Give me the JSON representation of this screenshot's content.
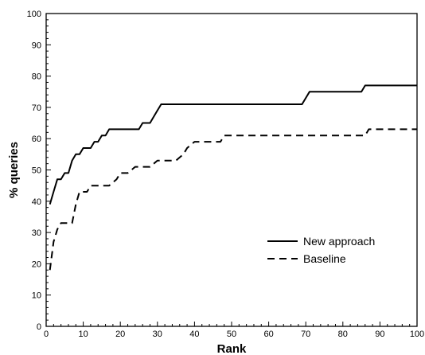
{
  "chart_data": {
    "type": "line",
    "xlabel": "Rank",
    "ylabel": "% queries",
    "xlim": [
      0,
      100
    ],
    "ylim": [
      0,
      100
    ],
    "xticks": [
      0,
      10,
      20,
      30,
      40,
      50,
      60,
      70,
      80,
      90,
      100
    ],
    "yticks": [
      0,
      10,
      20,
      30,
      40,
      50,
      60,
      70,
      80,
      90,
      100
    ],
    "grid": false,
    "legend_position": "lower-right",
    "series": [
      {
        "name": "New approach",
        "style": "solid",
        "color": "#000000",
        "x": [
          1,
          2,
          3,
          4,
          5,
          6,
          7,
          8,
          9,
          10,
          11,
          12,
          13,
          14,
          15,
          16,
          17,
          18,
          20,
          22,
          24,
          25,
          26,
          27,
          28,
          30,
          31,
          32,
          40,
          50,
          60,
          69,
          70,
          71,
          75,
          80,
          85,
          86,
          88,
          90,
          95,
          100
        ],
        "y": [
          39,
          43,
          47,
          47,
          49,
          49,
          53,
          55,
          55,
          57,
          57,
          57,
          59,
          59,
          61,
          61,
          63,
          63,
          63,
          63,
          63,
          63,
          65,
          65,
          65,
          69,
          71,
          71,
          71,
          71,
          71,
          71,
          73,
          75,
          75,
          75,
          75,
          77,
          77,
          77,
          77,
          77
        ]
      },
      {
        "name": "Baseline",
        "style": "dashed",
        "color": "#000000",
        "x": [
          1,
          2,
          3,
          4,
          5,
          6,
          7,
          8,
          9,
          10,
          11,
          12,
          14,
          16,
          17,
          19,
          20,
          22,
          24,
          25,
          26,
          28,
          30,
          31,
          32,
          35,
          37,
          38,
          40,
          45,
          47,
          48,
          50,
          60,
          70,
          80,
          86,
          87,
          90,
          95,
          100
        ],
        "y": [
          18,
          27,
          31,
          33,
          33,
          33,
          33,
          39,
          43,
          43,
          43,
          45,
          45,
          45,
          45,
          47,
          49,
          49,
          51,
          51,
          51,
          51,
          53,
          53,
          53,
          53,
          55,
          57,
          59,
          59,
          59,
          61,
          61,
          61,
          61,
          61,
          61,
          63,
          63,
          63,
          63
        ]
      }
    ]
  }
}
